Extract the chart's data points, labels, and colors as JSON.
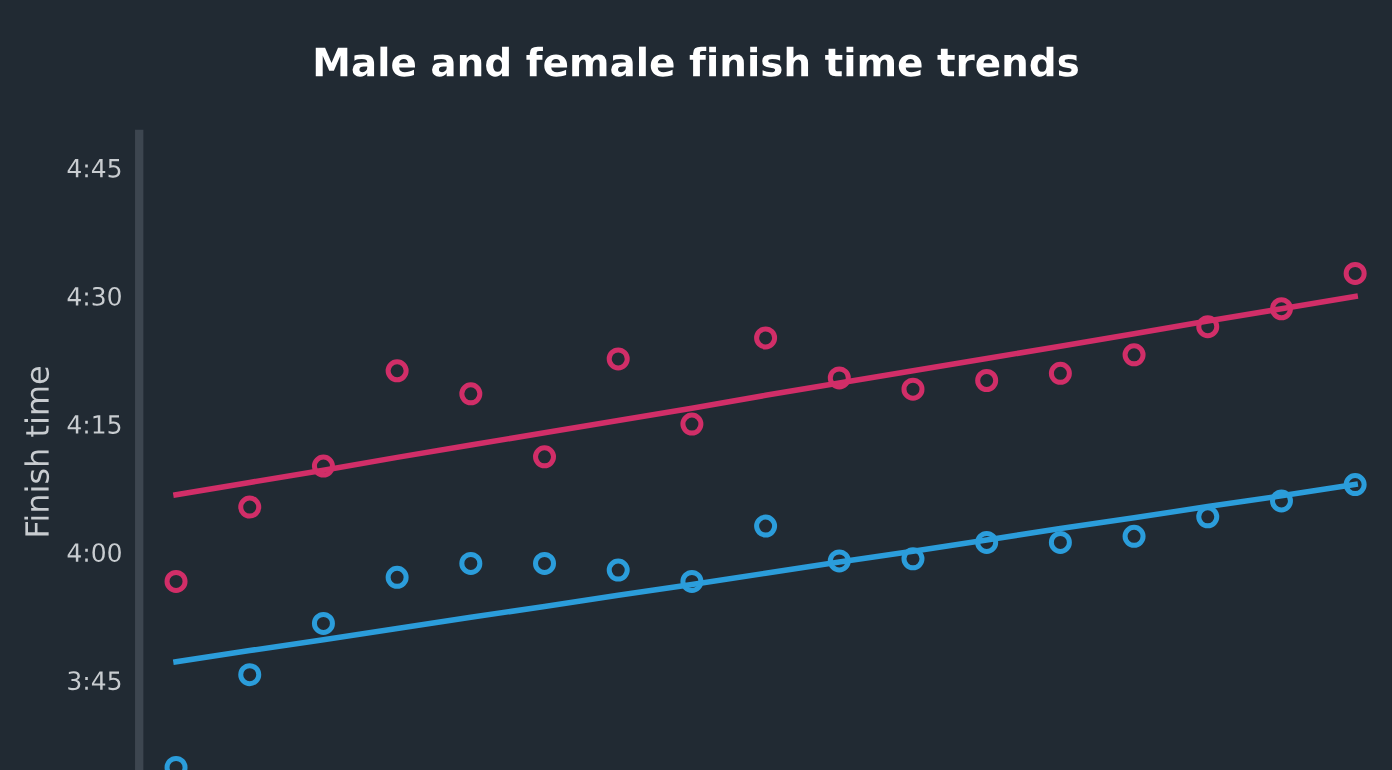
{
  "chart_data": {
    "type": "scatter",
    "title": "Male and female finish time trends",
    "ylabel": "Finish time",
    "categories": [
      null,
      null,
      null,
      null,
      null,
      null,
      null,
      null,
      null,
      null,
      null,
      null,
      null,
      null,
      null,
      null,
      null
    ],
    "series": [
      {
        "color": "#d12e68",
        "values": [
          3.943,
          4.088,
          4.168,
          4.354,
          4.309,
          4.186,
          4.377,
          4.25,
          4.418,
          4.34,
          4.318,
          4.335,
          4.349,
          4.385,
          4.44,
          4.475,
          4.544
        ]
      },
      {
        "color": "#2b9ddb",
        "values": [
          3.58,
          3.761,
          3.861,
          3.951,
          3.978,
          3.978,
          3.965,
          3.943,
          4.051,
          3.983,
          3.987,
          4.019,
          4.019,
          4.031,
          4.069,
          4.1,
          4.132
        ]
      },
      {
        "type": "line",
        "color": "#d12e68",
        "values": [
          4.112,
          4.136,
          4.16,
          4.185,
          4.209,
          4.233,
          4.257,
          4.281,
          4.306,
          4.33,
          4.354,
          4.378,
          4.402,
          4.426,
          4.451,
          4.475,
          4.499
        ],
        "marker": "none"
      },
      {
        "type": "line",
        "color": "#2b9ddb",
        "values": [
          3.786,
          3.808,
          3.829,
          3.851,
          3.873,
          3.894,
          3.916,
          3.937,
          3.959,
          3.981,
          4.002,
          4.024,
          4.046,
          4.067,
          4.089,
          4.11,
          4.132
        ],
        "marker": "none"
      }
    ],
    "ylim": [
      3.575,
      4.816
    ],
    "yticks": [
      {
        "value": 3.75,
        "label": "3:45"
      },
      {
        "value": 4.0,
        "label": "4:00"
      },
      {
        "value": 4.25,
        "label": "4:15"
      },
      {
        "value": 4.5,
        "label": "4:30"
      },
      {
        "value": 4.75,
        "label": "4:45"
      }
    ],
    "grid": false,
    "marker": "circle",
    "tick_labels": "y"
  }
}
